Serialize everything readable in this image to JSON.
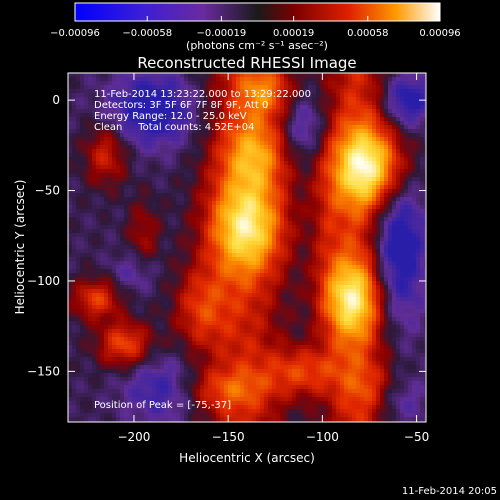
{
  "chart_data": {
    "type": "heatmap",
    "title": "Reconstructed RHESSI Image",
    "xlabel": "Heliocentric X (arcsec)",
    "ylabel": "Heliocentric Y (arcsec)",
    "xlim": [
      -235,
      -45
    ],
    "ylim": [
      -178,
      15
    ],
    "x_ticks": [
      -200,
      -150,
      -100,
      -50
    ],
    "x_tick_labels": [
      "−200",
      "−150",
      "−100",
      "−50"
    ],
    "y_ticks": [
      0,
      -50,
      -100,
      -150
    ],
    "y_tick_labels": [
      "0",
      "−50",
      "−100",
      "−150"
    ],
    "colorbar": {
      "range": [
        -0.00096,
        0.00096
      ],
      "ticks": [
        -0.00096,
        -0.00058,
        -0.00019,
        0.00019,
        0.00058,
        0.00096
      ],
      "tick_labels": [
        "−0.00096",
        "−0.00058",
        "−0.00019",
        "0.00019",
        "0.00058",
        "0.00096"
      ],
      "unit_label": "(photons cm⁻² s⁻¹ asec⁻²)"
    },
    "annotations": [
      "11-Feb-2014 13:23:22.000 to 13:29:22.000",
      "Detectors: 3F 5F 6F 7F 8F 9F, Att 0",
      "Energy Range: 12.0 - 25.0 keV",
      "Clean     Total counts: 4.52E+04"
    ],
    "peak_label": "Position of Peak = [-75,-37]",
    "peak_position": [
      -75,
      -37
    ],
    "timestamp": "11-Feb-2014 20:05",
    "grid": false,
    "colors": {
      "low": "#0000ff",
      "negative": "#5a2a9a",
      "zero": "#202020",
      "mid": "#d00000",
      "high": "#ffc000",
      "max": "#ffffff"
    }
  }
}
